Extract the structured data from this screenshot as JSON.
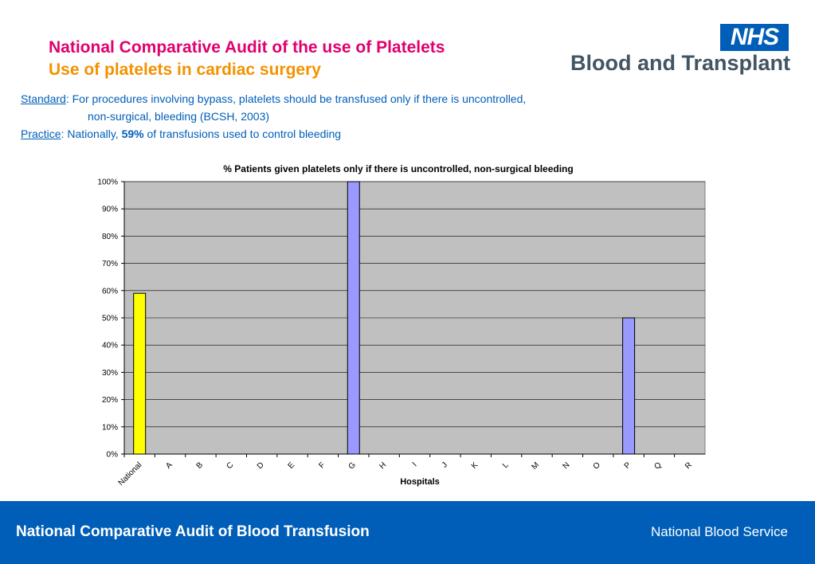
{
  "header": {
    "title": "National Comparative Audit of the use of Platelets",
    "subtitle": "Use of platelets in cardiac surgery",
    "logo_nhs": "NHS",
    "logo_text": "Blood and Transplant"
  },
  "standard": {
    "label": "Standard",
    "line1": ": For procedures involving bypass, platelets should be transfused only if there is uncontrolled,",
    "line2": "non-surgical, bleeding (BCSH, 2003)"
  },
  "practice": {
    "label": "Practice",
    "prefix": ":  Nationally, ",
    "value": "59%",
    "suffix": " of transfusions used to control bleeding"
  },
  "chart_data": {
    "type": "bar",
    "title": "% Patients given platelets only if there is uncontrolled, non-surgical bleeding",
    "xlabel": "Hospitals",
    "ylabel": "",
    "categories": [
      "National",
      "A",
      "B",
      "C",
      "D",
      "E",
      "F",
      "G",
      "H",
      "I",
      "J",
      "K",
      "L",
      "M",
      "N",
      "O",
      "P",
      "Q",
      "R"
    ],
    "values": [
      59,
      0,
      0,
      0,
      0,
      0,
      0,
      100,
      0,
      0,
      0,
      0,
      0,
      0,
      0,
      0,
      50,
      0,
      0
    ],
    "ylim": [
      0,
      100
    ],
    "yticks": [
      "0%",
      "10%",
      "20%",
      "30%",
      "40%",
      "50%",
      "60%",
      "70%",
      "80%",
      "90%",
      "100%"
    ],
    "grid": true,
    "colors": {
      "national": "#ffff00",
      "hospital": "#9999ff",
      "plot_bg": "#c0c0c0"
    }
  },
  "footer": {
    "left": "National Comparative Audit of Blood Transfusion",
    "right": "National Blood Service"
  }
}
